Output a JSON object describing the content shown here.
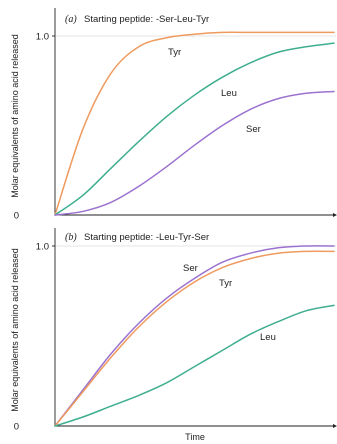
{
  "colors": {
    "tyr": "#ef9a5e",
    "leu": "#3fae8f",
    "ser": "#9b72cf"
  },
  "chart_data": [
    {
      "type": "line",
      "panel": "(a)",
      "title": "Starting peptide: -Ser-Leu-Tyr",
      "ylabel": "Molar equivalents of amino acid released",
      "xlabel": "",
      "ylim": [
        0,
        1.0
      ],
      "yticks": [
        "0",
        "1.0"
      ],
      "grid": "horizontal at 1.0",
      "x": [
        0,
        0.1,
        0.2,
        0.3,
        0.4,
        0.5,
        0.6,
        0.7,
        0.8,
        0.9,
        1.0
      ],
      "series": [
        {
          "name": "Tyr",
          "color": "tyr",
          "values": [
            0,
            0.48,
            0.79,
            0.94,
            0.99,
            1.01,
            1.02,
            1.02,
            1.02,
            1.02,
            1.02
          ]
        },
        {
          "name": "Leu",
          "color": "leu",
          "values": [
            0,
            0.11,
            0.26,
            0.41,
            0.55,
            0.67,
            0.77,
            0.85,
            0.91,
            0.94,
            0.96
          ]
        },
        {
          "name": "Ser",
          "color": "ser",
          "values": [
            0,
            0.02,
            0.07,
            0.16,
            0.27,
            0.39,
            0.5,
            0.59,
            0.65,
            0.68,
            0.69
          ]
        }
      ]
    },
    {
      "type": "line",
      "panel": "(b)",
      "title": "Starting peptide: -Leu-Tyr-Ser",
      "ylabel": "Molar equivalents of amino acid released",
      "xlabel": "Time",
      "ylim": [
        0,
        1.0
      ],
      "yticks": [
        "0",
        "1.0"
      ],
      "grid": "horizontal at 1.0",
      "x": [
        0,
        0.1,
        0.2,
        0.3,
        0.4,
        0.5,
        0.6,
        0.7,
        0.8,
        0.9,
        1.0
      ],
      "series": [
        {
          "name": "Ser",
          "color": "ser",
          "values": [
            0,
            0.2,
            0.4,
            0.57,
            0.71,
            0.82,
            0.91,
            0.96,
            0.99,
            1.0,
            1.0
          ]
        },
        {
          "name": "Tyr",
          "color": "tyr",
          "values": [
            0,
            0.19,
            0.38,
            0.55,
            0.69,
            0.8,
            0.88,
            0.93,
            0.96,
            0.97,
            0.97
          ]
        },
        {
          "name": "Leu",
          "color": "leu",
          "values": [
            0,
            0.05,
            0.11,
            0.17,
            0.24,
            0.33,
            0.42,
            0.51,
            0.58,
            0.64,
            0.67
          ]
        }
      ]
    }
  ]
}
